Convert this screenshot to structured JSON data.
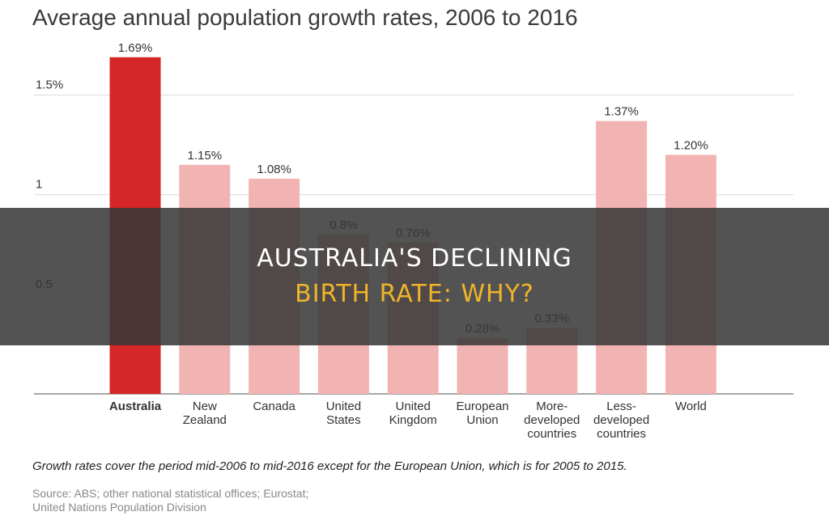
{
  "banner": {
    "line1": "AUSTRALIA'S DECLINING",
    "line2": "BIRTH RATE: WHY?",
    "color_line1": "#ffffff",
    "color_line2": "#f0b429"
  },
  "chart_data": {
    "type": "bar",
    "title": "Average annual population growth rates, 2006 to 2016",
    "categories": [
      [
        "Australia"
      ],
      [
        "New",
        "Zealand"
      ],
      [
        "Canada"
      ],
      [
        "United",
        "States"
      ],
      [
        "United",
        "Kingdom"
      ],
      [
        "European",
        "Union"
      ],
      [
        "More-",
        "developed",
        "countries"
      ],
      [
        "Less-",
        "developed",
        "countries"
      ],
      [
        "World"
      ]
    ],
    "values": [
      1.69,
      1.15,
      1.08,
      0.8,
      0.76,
      0.28,
      0.33,
      1.37,
      1.2
    ],
    "value_labels": [
      "1.69%",
      "1.15%",
      "1.08%",
      "0.8%",
      "0.76%",
      "0.28%",
      "0.33%",
      "1.37%",
      "1.20%"
    ],
    "yticks": [
      {
        "value": 0.5,
        "label": "0.5"
      },
      {
        "value": 1,
        "label": "1"
      },
      {
        "value": 1.5,
        "label": "1.5%"
      }
    ],
    "ylim": [
      0,
      1.75
    ],
    "grid": true,
    "highlight_index": 0,
    "colors": {
      "highlight": "#d62728",
      "default": "#f2b3b3",
      "grid": "#d9d9d9",
      "axis": "#888888"
    },
    "note": "Growth rates cover the period mid-2006 to mid-2016 except for the European Union, which is for 2005 to 2015.",
    "source": [
      "Source: ABS; other national statistical offices; Eurostat;",
      "United Nations Population Division"
    ]
  }
}
